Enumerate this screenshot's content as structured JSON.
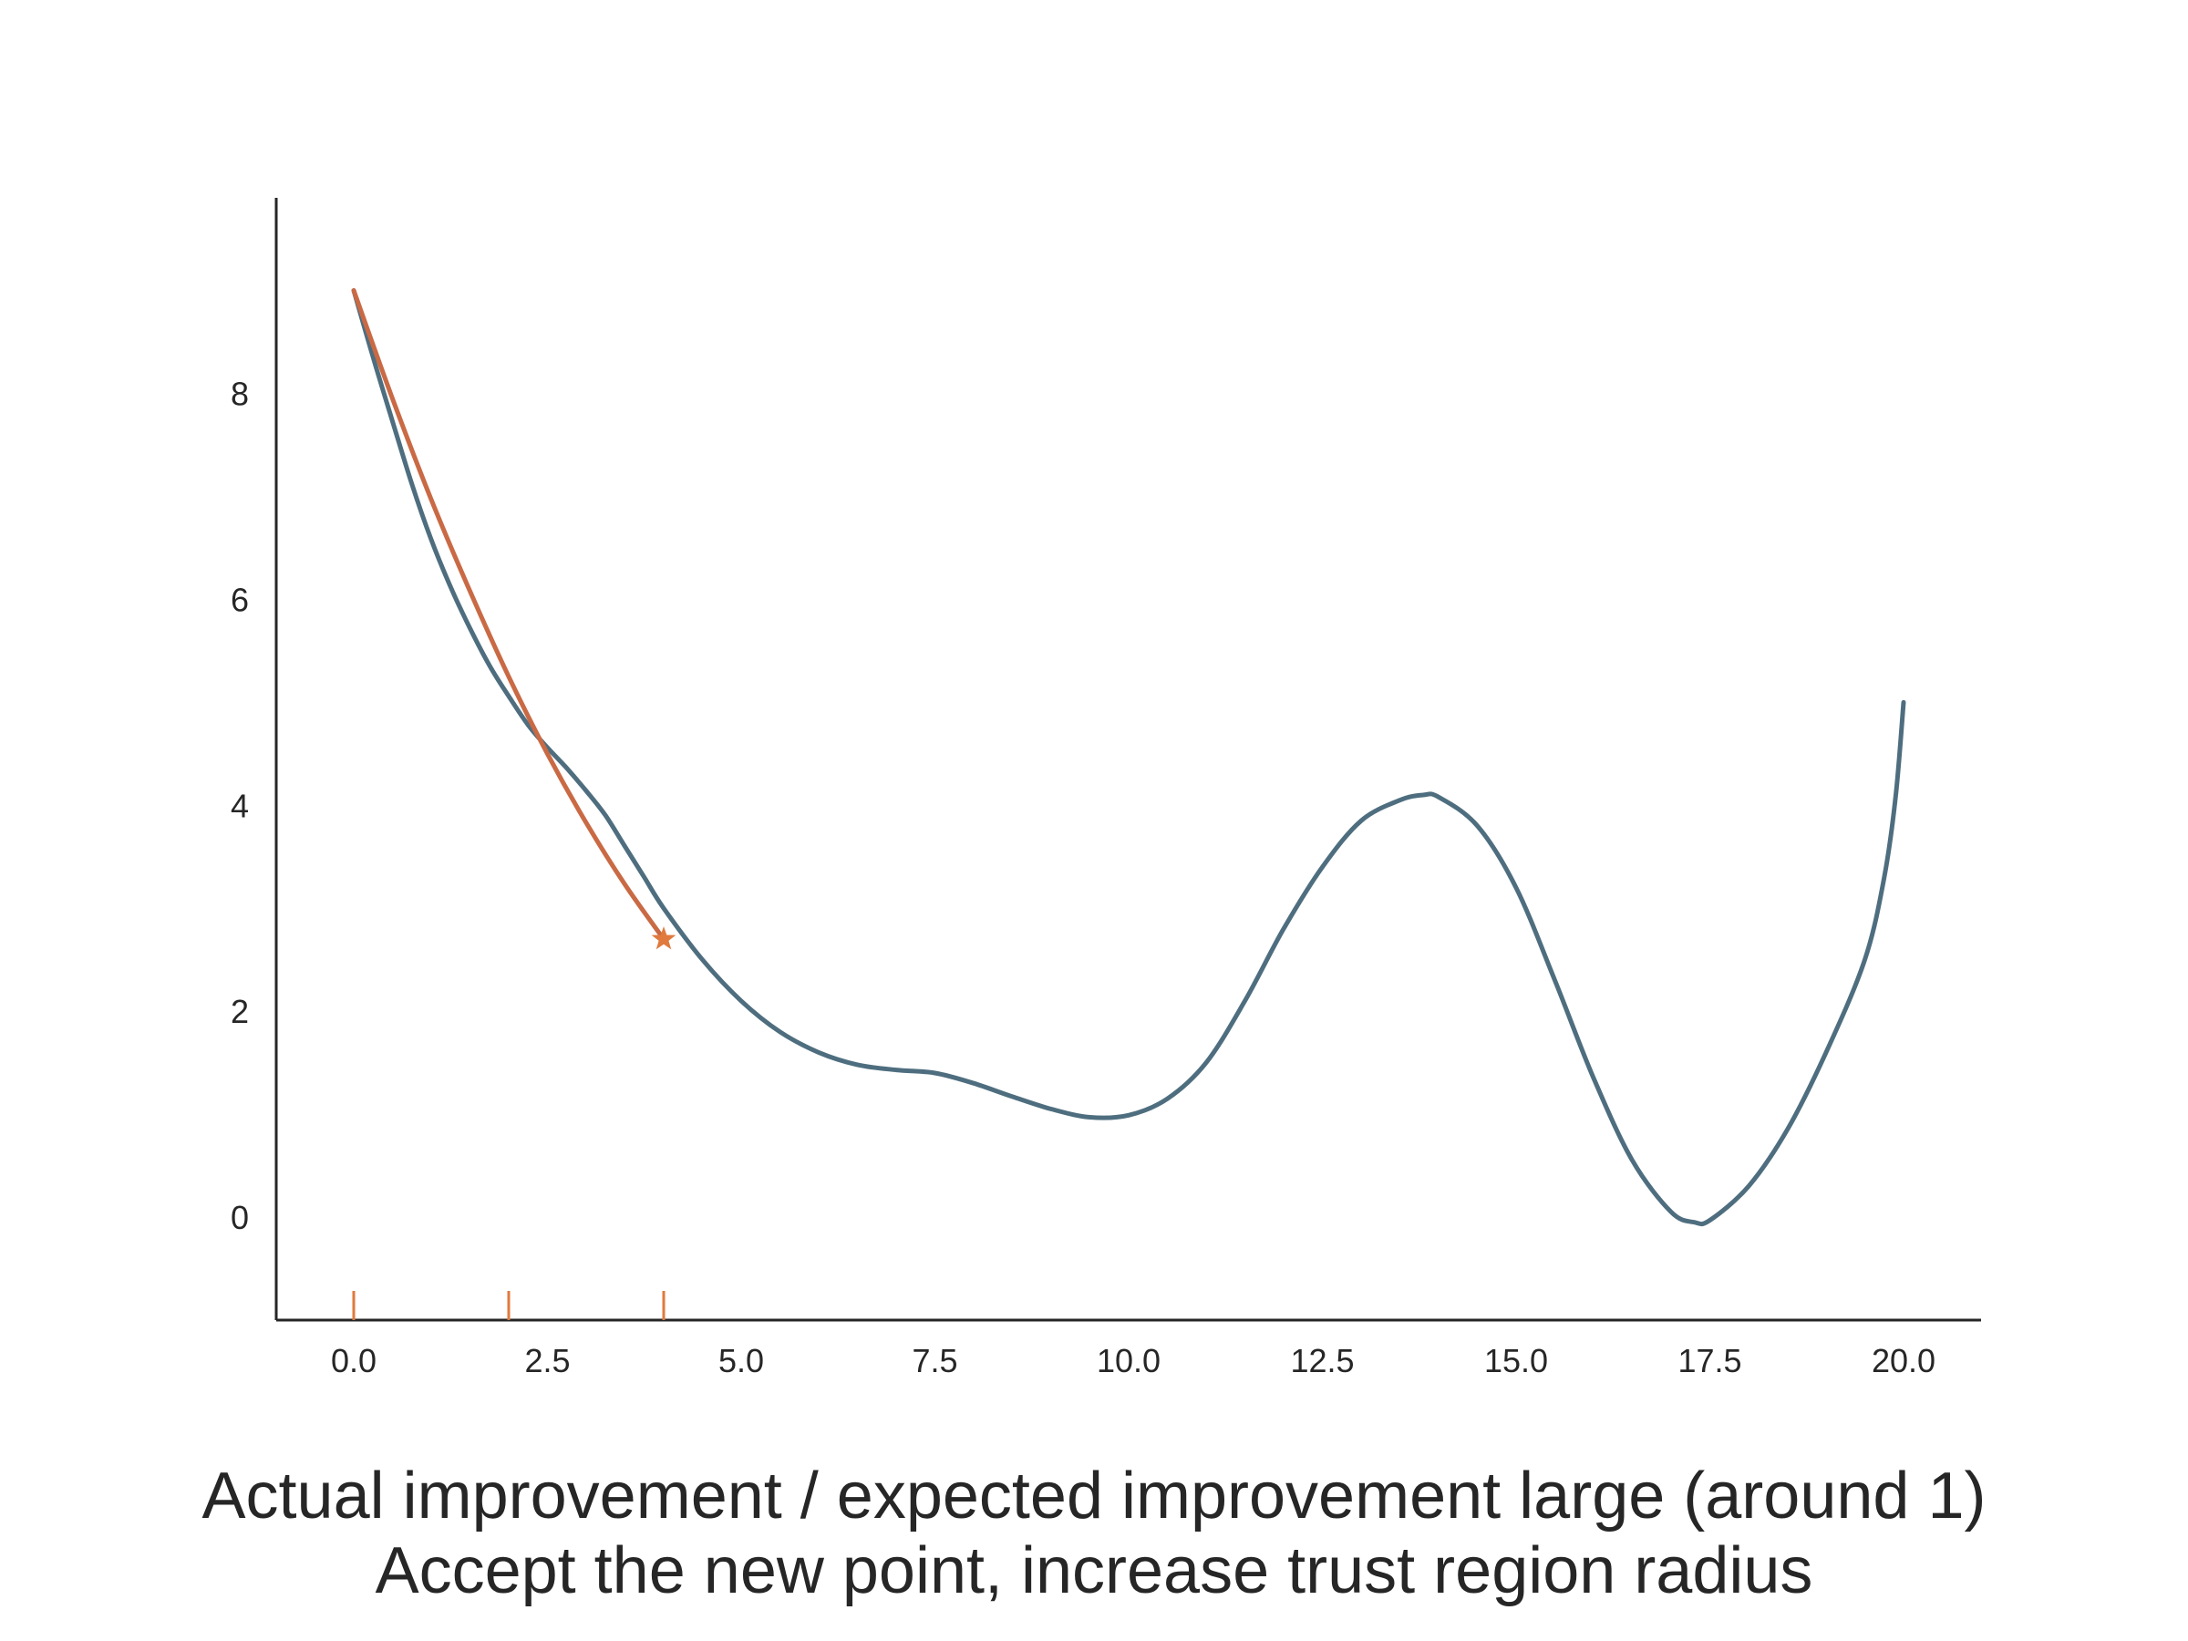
{
  "chart_data": {
    "type": "line",
    "title": "",
    "xlabel": "",
    "ylabel": "",
    "xlim": [
      -1,
      21
    ],
    "ylim": [
      -1,
      9.9
    ],
    "x_ticks": [
      "0.0",
      "2.5",
      "5.0",
      "7.5",
      "10.0",
      "12.5",
      "15.0",
      "17.5",
      "20.0"
    ],
    "x_tick_values": [
      0,
      2.5,
      5,
      7.5,
      10,
      12.5,
      15,
      17.5,
      20
    ],
    "y_ticks": [
      "0",
      "2",
      "4",
      "6",
      "8"
    ],
    "y_tick_values": [
      0,
      2,
      4,
      6,
      8
    ],
    "grid": false,
    "series": [
      {
        "role": "objective",
        "color": "#4e6e7f",
        "points": [
          [
            0,
            9.0
          ],
          [
            0.25,
            8.35
          ],
          [
            0.5,
            7.73
          ],
          [
            0.75,
            7.12
          ],
          [
            1.0,
            6.58
          ],
          [
            1.25,
            6.12
          ],
          [
            1.5,
            5.72
          ],
          [
            1.75,
            5.36
          ],
          [
            2.0,
            5.06
          ],
          [
            2.25,
            4.78
          ],
          [
            2.5,
            4.56
          ],
          [
            2.75,
            4.36
          ],
          [
            3.0,
            4.14
          ],
          [
            3.25,
            3.9
          ],
          [
            3.5,
            3.6
          ],
          [
            3.75,
            3.3
          ],
          [
            4.0,
            3.0
          ],
          [
            4.5,
            2.5
          ],
          [
            5.0,
            2.1
          ],
          [
            5.5,
            1.8
          ],
          [
            6.0,
            1.6
          ],
          [
            6.5,
            1.48
          ],
          [
            7.0,
            1.43
          ],
          [
            7.5,
            1.4
          ],
          [
            8.0,
            1.3
          ],
          [
            8.5,
            1.17
          ],
          [
            9.0,
            1.05
          ],
          [
            9.5,
            0.97
          ],
          [
            10.0,
            0.99
          ],
          [
            10.5,
            1.15
          ],
          [
            11.0,
            1.5
          ],
          [
            11.5,
            2.1
          ],
          [
            12.0,
            2.8
          ],
          [
            12.5,
            3.4
          ],
          [
            13.0,
            3.85
          ],
          [
            13.5,
            4.05
          ],
          [
            13.8,
            4.1
          ],
          [
            14.0,
            4.08
          ],
          [
            14.5,
            3.8
          ],
          [
            15.0,
            3.2
          ],
          [
            15.5,
            2.3
          ],
          [
            16.0,
            1.35
          ],
          [
            16.5,
            0.55
          ],
          [
            17.0,
            0.05
          ],
          [
            17.3,
            -0.05
          ],
          [
            17.5,
            -0.03
          ],
          [
            18.0,
            0.3
          ],
          [
            18.5,
            0.85
          ],
          [
            19.0,
            1.6
          ],
          [
            19.5,
            2.5
          ],
          [
            19.75,
            3.3
          ],
          [
            19.9,
            4.1
          ],
          [
            20.0,
            5.0
          ]
        ]
      },
      {
        "role": "quadratic-model",
        "color": "#c96a45",
        "points": [
          [
            0,
            9.0
          ],
          [
            0.5,
            7.95
          ],
          [
            1.0,
            6.97
          ],
          [
            1.5,
            6.08
          ],
          [
            2.0,
            5.25
          ],
          [
            2.5,
            4.5
          ],
          [
            3.0,
            3.83
          ],
          [
            3.5,
            3.23
          ],
          [
            4.0,
            2.7
          ]
        ]
      }
    ],
    "star_point": {
      "x": 4.0,
      "y": 2.7,
      "color": "#e07a3e"
    },
    "rug_ticks": {
      "x": [
        0,
        2,
        4
      ],
      "color": "#e07a3e"
    }
  },
  "caption": {
    "line1": "Actual improvement / expected improvement large (around 1)",
    "line2": "Accept the new point, increase trust region radius"
  }
}
